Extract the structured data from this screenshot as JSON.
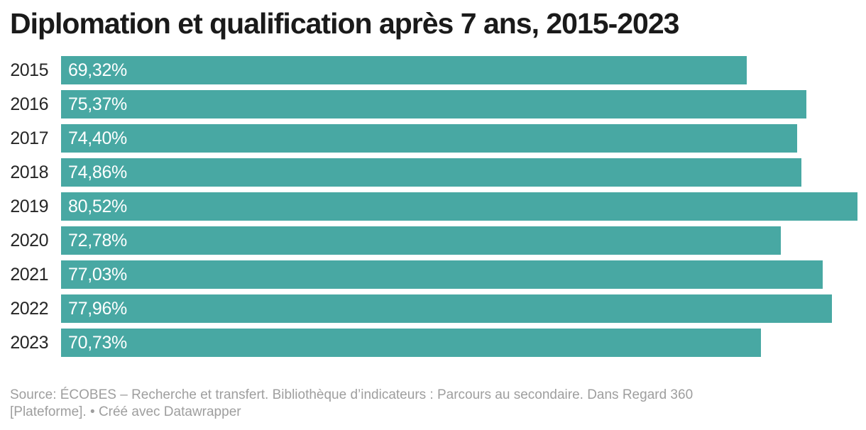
{
  "title": "Diplomation et qualification après 7 ans, 2015-2023",
  "chart_data": {
    "type": "bar",
    "orientation": "horizontal",
    "title": "Diplomation et qualification après 7 ans, 2015-2023",
    "categories": [
      "2015",
      "2016",
      "2017",
      "2018",
      "2019",
      "2020",
      "2021",
      "2022",
      "2023"
    ],
    "values": [
      69.32,
      75.37,
      74.4,
      74.86,
      80.52,
      72.78,
      77.03,
      77.96,
      70.73
    ],
    "value_labels": [
      "69,32%",
      "75,37%",
      "74,40%",
      "74,86%",
      "80,52%",
      "72,78%",
      "77,03%",
      "77,96%",
      "70,73%"
    ],
    "xlabel": "",
    "ylabel": "",
    "xlim": [
      0,
      80.52
    ],
    "grid": false,
    "legend": false,
    "value_label_position": "inside-start",
    "bar_color": "#48a8a3"
  },
  "colors": {
    "bar": "#48a8a3",
    "title": "#1a1a1a",
    "category_label": "#262626",
    "value_label": "#ffffff",
    "footer_text": "#9e9e9e",
    "background": "#ffffff"
  },
  "footer": {
    "source_text": "Source: ÉCOBES – Recherche et transfert. Bibliothèque d’indicateurs : Parcours au secondaire. Dans Regard 360 [Plateforme].",
    "separator": "•",
    "attribution_label": "Créé avec Datawrapper"
  }
}
